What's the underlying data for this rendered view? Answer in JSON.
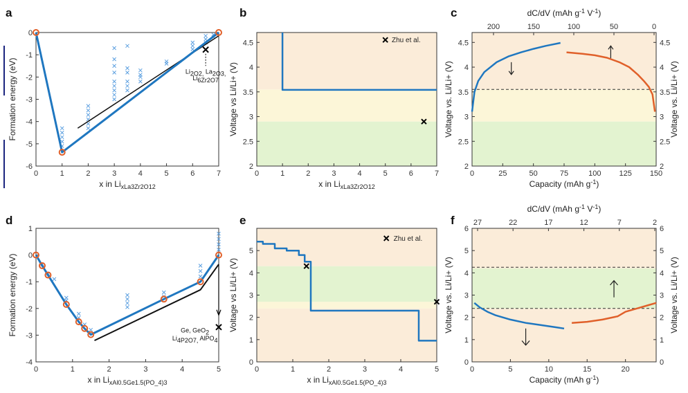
{
  "colors": {
    "blue": "#1f77c0",
    "orange": "#e0602a",
    "bg_orange": "#fbecd9",
    "bg_yellow": "#fcf6d8",
    "bg_green": "#e3f3d0",
    "hull_black": "#111111",
    "sidebar_mark": "#1a237e"
  },
  "chart_data": [
    {
      "panel": "a",
      "type": "scatter",
      "xlabel": "x in Li_xLa_3Zr_2O_12",
      "ylabel": "Formation energy (eV)",
      "xlim": [
        0,
        7
      ],
      "ylim": [
        -6,
        0
      ],
      "xticks": [
        "0",
        "1",
        "2",
        "3",
        "4",
        "5",
        "6",
        "7"
      ],
      "yticks": [
        "0",
        "-1",
        "-2",
        "-3",
        "-4",
        "-5",
        "-6"
      ],
      "annotation": "Li2O2, La2O3, Li6Zr2O7",
      "hull": [
        [
          0,
          0
        ],
        [
          1,
          -5.38
        ],
        [
          7,
          0
        ]
      ],
      "hull_points": [
        [
          0,
          0
        ],
        [
          1,
          -5.38
        ],
        [
          7,
          0
        ]
      ],
      "black_line": [
        [
          1.6,
          -4.3
        ],
        [
          7,
          -0.15
        ]
      ],
      "cross": [
        6.5,
        -0.77
      ],
      "scatter": [
        [
          1,
          -4.3
        ],
        [
          1,
          -4.5
        ],
        [
          1,
          -4.7
        ],
        [
          1,
          -4.9
        ],
        [
          1,
          -5.1
        ],
        [
          2,
          -3.3
        ],
        [
          2,
          -3.5
        ],
        [
          2,
          -3.7
        ],
        [
          2,
          -3.9
        ],
        [
          2,
          -4.1
        ],
        [
          2,
          -4.3
        ],
        [
          3,
          -0.7
        ],
        [
          3,
          -1.2
        ],
        [
          3,
          -1.5
        ],
        [
          3,
          -1.8
        ],
        [
          3,
          -2.2
        ],
        [
          3,
          -2.4
        ],
        [
          3,
          -2.6
        ],
        [
          3,
          -2.8
        ],
        [
          3,
          -3.0
        ],
        [
          3.5,
          -0.6
        ],
        [
          3.5,
          -1.6
        ],
        [
          3.5,
          -1.8
        ],
        [
          3.5,
          -2.2
        ],
        [
          3.5,
          -2.4
        ],
        [
          3.5,
          -2.6
        ],
        [
          4,
          -1.7
        ],
        [
          4,
          -1.9
        ],
        [
          4,
          -2.0
        ],
        [
          4,
          -2.2
        ],
        [
          5,
          -1.3
        ],
        [
          5,
          -1.4
        ],
        [
          6,
          -0.45
        ],
        [
          6,
          -0.6
        ],
        [
          6,
          -0.75
        ],
        [
          6.5,
          -0.15
        ],
        [
          6.5,
          -0.3
        ],
        [
          6.5,
          -0.45
        ],
        [
          6.8,
          -0.1
        ],
        [
          6.8,
          -0.2
        ]
      ]
    },
    {
      "panel": "b",
      "type": "line",
      "xlabel": "x in Li_xLa_3Zr_2O_12",
      "ylabel": "Voltage vs Li/Li+ (V)",
      "xlim": [
        0,
        7
      ],
      "ylim": [
        2,
        4.7
      ],
      "xticks": [
        "0",
        "1",
        "2",
        "3",
        "4",
        "5",
        "6",
        "7"
      ],
      "yticks": [
        "2",
        "2.5",
        "3",
        "3.5",
        "4",
        "4.5"
      ],
      "legend": "Zhu et al.",
      "bands": [
        {
          "from": 2.0,
          "to": 2.9,
          "color": "bg_green"
        },
        {
          "from": 2.9,
          "to": 3.55,
          "color": "bg_yellow"
        },
        {
          "from": 3.55,
          "to": 4.7,
          "color": "bg_orange"
        }
      ],
      "line": [
        [
          1,
          4.7
        ],
        [
          1,
          3.54
        ],
        [
          7,
          3.54
        ]
      ],
      "cross": [
        6.5,
        2.9
      ]
    },
    {
      "panel": "c",
      "type": "line",
      "xlabel": "Capacity (mAh g^-1)",
      "ylabel": "Voltage vs. Li/Li+ (V)",
      "top_label": "dC/dV (mAh g^-1 V^-1)",
      "xlim": [
        0,
        150
      ],
      "ylim": [
        2,
        4.7
      ],
      "xticks": [
        "0",
        "25",
        "50",
        "75",
        "100",
        "125",
        "150"
      ],
      "top_ticks": [
        "200",
        "150",
        "100",
        "50",
        "0"
      ],
      "yticks": [
        "2",
        "2.5",
        "3",
        "3.5",
        "4",
        "4.5"
      ],
      "bands": [
        {
          "from": 2.0,
          "to": 2.9,
          "color": "bg_green"
        },
        {
          "from": 2.9,
          "to": 3.55,
          "color": "bg_yellow"
        },
        {
          "from": 3.55,
          "to": 4.7,
          "color": "bg_orange"
        }
      ],
      "dashed_y": 3.55,
      "series": [
        {
          "color": "blue",
          "points": [
            [
              0,
              3.1
            ],
            [
              2,
              3.5
            ],
            [
              5,
              3.72
            ],
            [
              10,
              3.9
            ],
            [
              20,
              4.1
            ],
            [
              30,
              4.22
            ],
            [
              40,
              4.3
            ],
            [
              50,
              4.37
            ],
            [
              60,
              4.43
            ],
            [
              72,
              4.49
            ]
          ]
        },
        {
          "color": "orange",
          "points": [
            [
              77,
              4.3
            ],
            [
              90,
              4.27
            ],
            [
              100,
              4.24
            ],
            [
              110,
              4.19
            ],
            [
              120,
              4.1
            ],
            [
              128,
              4.0
            ],
            [
              135,
              3.85
            ],
            [
              140,
              3.72
            ],
            [
              144,
              3.6
            ],
            [
              147,
              3.45
            ],
            [
              149,
              3.1
            ]
          ]
        }
      ]
    },
    {
      "panel": "d",
      "type": "scatter",
      "xlabel": "x in Li_xAl_0.5Ge_1.5(PO_4)_3",
      "ylabel": "Formation energy (eV)",
      "xlim": [
        0,
        5
      ],
      "ylim": [
        -4,
        1
      ],
      "xticks": [
        "0",
        "1",
        "2",
        "3",
        "4",
        "5"
      ],
      "yticks": [
        "1",
        "0",
        "-1",
        "-2",
        "-3",
        "-4"
      ],
      "annotation": "Ge, GeO2, Li4P2O7, AlPO4",
      "hull": [
        [
          0,
          0
        ],
        [
          0.17,
          -0.4
        ],
        [
          0.33,
          -0.75
        ],
        [
          0.83,
          -1.85
        ],
        [
          1.17,
          -2.5
        ],
        [
          1.33,
          -2.75
        ],
        [
          1.5,
          -2.98
        ],
        [
          3.5,
          -1.65
        ],
        [
          4.5,
          -1.0
        ],
        [
          5,
          0
        ]
      ],
      "black_line": [
        [
          1.6,
          -3.2
        ],
        [
          4.5,
          -1.3
        ],
        [
          5,
          -0.35
        ]
      ],
      "arrow_down": [
        [
          5,
          -0.35
        ],
        [
          5,
          -2.1
        ]
      ],
      "cross": [
        5,
        -2.7
      ],
      "scatter": [
        [
          0.17,
          -0.35
        ],
        [
          0.33,
          -0.7
        ],
        [
          0.5,
          -0.9
        ],
        [
          0.83,
          -1.6
        ],
        [
          0.83,
          -1.7
        ],
        [
          1.17,
          -2.2
        ],
        [
          1.17,
          -2.35
        ],
        [
          1.33,
          -2.6
        ],
        [
          1.5,
          -2.8
        ],
        [
          2.5,
          -1.5
        ],
        [
          2.5,
          -1.65
        ],
        [
          2.5,
          -1.8
        ],
        [
          2.5,
          -1.95
        ],
        [
          3.5,
          -1.4
        ],
        [
          3.5,
          -1.55
        ],
        [
          4.5,
          -0.4
        ],
        [
          4.5,
          -0.6
        ],
        [
          4.5,
          -0.8
        ],
        [
          5,
          0.2
        ],
        [
          5,
          0.4
        ],
        [
          5,
          0.6
        ],
        [
          5,
          0.8
        ]
      ]
    },
    {
      "panel": "e",
      "type": "line",
      "xlabel": "x in Li_xAl_0.5Ge_1.5(PO_4)_3",
      "ylabel": "Voltage vs Li/Li+ (V)",
      "xlim": [
        0,
        5
      ],
      "ylim": [
        0,
        6
      ],
      "xticks": [
        "0",
        "1",
        "2",
        "3",
        "4",
        "5"
      ],
      "yticks": [
        "0",
        "1",
        "2",
        "3",
        "4",
        "5"
      ],
      "legend": "Zhu et al.",
      "bands": [
        {
          "from": 0,
          "to": 2.4,
          "color": "bg_orange"
        },
        {
          "from": 2.4,
          "to": 2.7,
          "color": "bg_yellow"
        },
        {
          "from": 2.7,
          "to": 4.3,
          "color": "bg_green"
        },
        {
          "from": 4.3,
          "to": 6,
          "color": "bg_orange"
        }
      ],
      "line": [
        [
          0,
          5.4
        ],
        [
          0.17,
          5.4
        ],
        [
          0.17,
          5.3
        ],
        [
          0.5,
          5.3
        ],
        [
          0.5,
          5.1
        ],
        [
          0.83,
          5.1
        ],
        [
          0.83,
          5.0
        ],
        [
          1.17,
          5.0
        ],
        [
          1.17,
          4.8
        ],
        [
          1.33,
          4.8
        ],
        [
          1.33,
          4.5
        ],
        [
          1.5,
          4.5
        ],
        [
          1.5,
          2.3
        ],
        [
          4.5,
          2.3
        ],
        [
          4.5,
          0.95
        ],
        [
          5,
          0.95
        ]
      ],
      "crosses": [
        [
          1.38,
          4.3
        ],
        [
          5,
          2.7
        ]
      ]
    },
    {
      "panel": "f",
      "type": "line",
      "xlabel": "Capacity (mAh g^-1)",
      "ylabel": "Voltage vs. Li/Li+ (V)",
      "top_label": "dC/dV (mAh g^-1 V^-1)",
      "xlim": [
        0,
        24
      ],
      "ylim": [
        0,
        6
      ],
      "xticks": [
        "0",
        "5",
        "10",
        "15",
        "20"
      ],
      "top_ticks": [
        "27",
        "22",
        "17",
        "12",
        "7",
        "2"
      ],
      "yticks": [
        "0",
        "1",
        "2",
        "3",
        "4",
        "5",
        "6"
      ],
      "bands": [
        {
          "from": 0,
          "to": 2.4,
          "color": "bg_orange"
        },
        {
          "from": 2.4,
          "to": 4.2,
          "color": "bg_green"
        },
        {
          "from": 4.2,
          "to": 6,
          "color": "bg_orange"
        }
      ],
      "dashed_y": [
        2.4,
        4.25
      ],
      "series": [
        {
          "color": "blue",
          "points": [
            [
              0.3,
              2.65
            ],
            [
              1,
              2.45
            ],
            [
              2,
              2.25
            ],
            [
              3,
              2.1
            ],
            [
              5,
              1.9
            ],
            [
              7,
              1.75
            ],
            [
              9,
              1.65
            ],
            [
              11,
              1.55
            ],
            [
              12,
              1.5
            ]
          ]
        },
        {
          "color": "orange",
          "points": [
            [
              13,
              1.75
            ],
            [
              15,
              1.8
            ],
            [
              17,
              1.9
            ],
            [
              19,
              2.05
            ],
            [
              20,
              2.25
            ],
            [
              21.5,
              2.4
            ],
            [
              23,
              2.55
            ],
            [
              24,
              2.65
            ]
          ]
        }
      ]
    }
  ],
  "panel_labels": {
    "a": "a",
    "b": "b",
    "c": "c",
    "d": "d",
    "e": "e",
    "f": "f"
  }
}
